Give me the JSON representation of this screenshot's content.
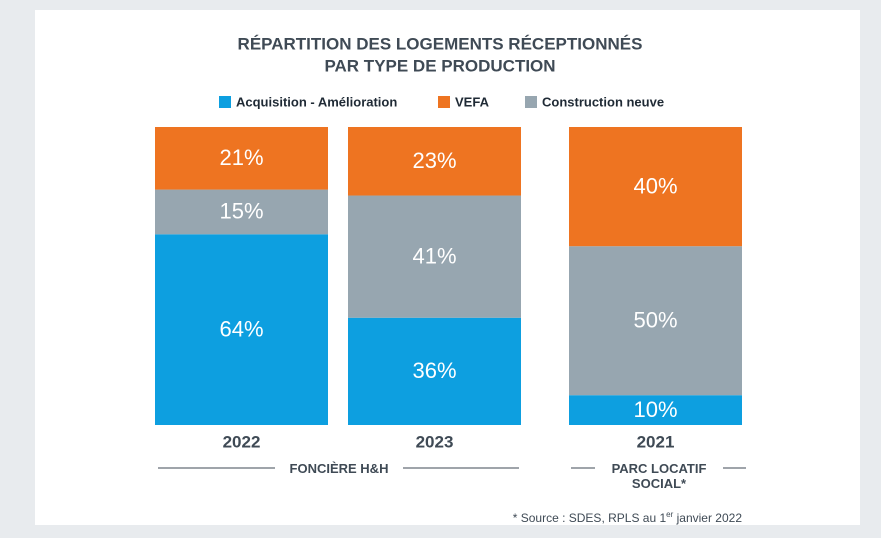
{
  "chart_data": {
    "type": "stacked_bar",
    "title": [
      "RÉPARTITION DES LOGEMENTS RÉCEPTIONNÉS",
      "PAR TYPE DE PRODUCTION"
    ],
    "categories": [
      "2022",
      "2023",
      "2021"
    ],
    "series": [
      {
        "name": "Acquisition - Amélioration",
        "color": "#0d9fe0",
        "values": [
          64,
          36,
          10
        ],
        "value_labels": [
          "64%",
          "36%",
          "10%"
        ]
      },
      {
        "name": "VEFA",
        "color": "#ee7421",
        "values": [
          21,
          23,
          40
        ],
        "value_labels": [
          "21%",
          "23%",
          "40%"
        ]
      },
      {
        "name": "Construction neuve",
        "color": "#97a6b0",
        "values": [
          15,
          41,
          50
        ],
        "value_labels": [
          "15%",
          "41%",
          "50%"
        ]
      }
    ],
    "groups": [
      "FONCIÈRE H&H",
      "PARC LOCATIF SOCIAL*"
    ],
    "footnote": [
      "* Source : SDES, RPLS au 1",
      "er",
      " janvier 2022"
    ]
  }
}
